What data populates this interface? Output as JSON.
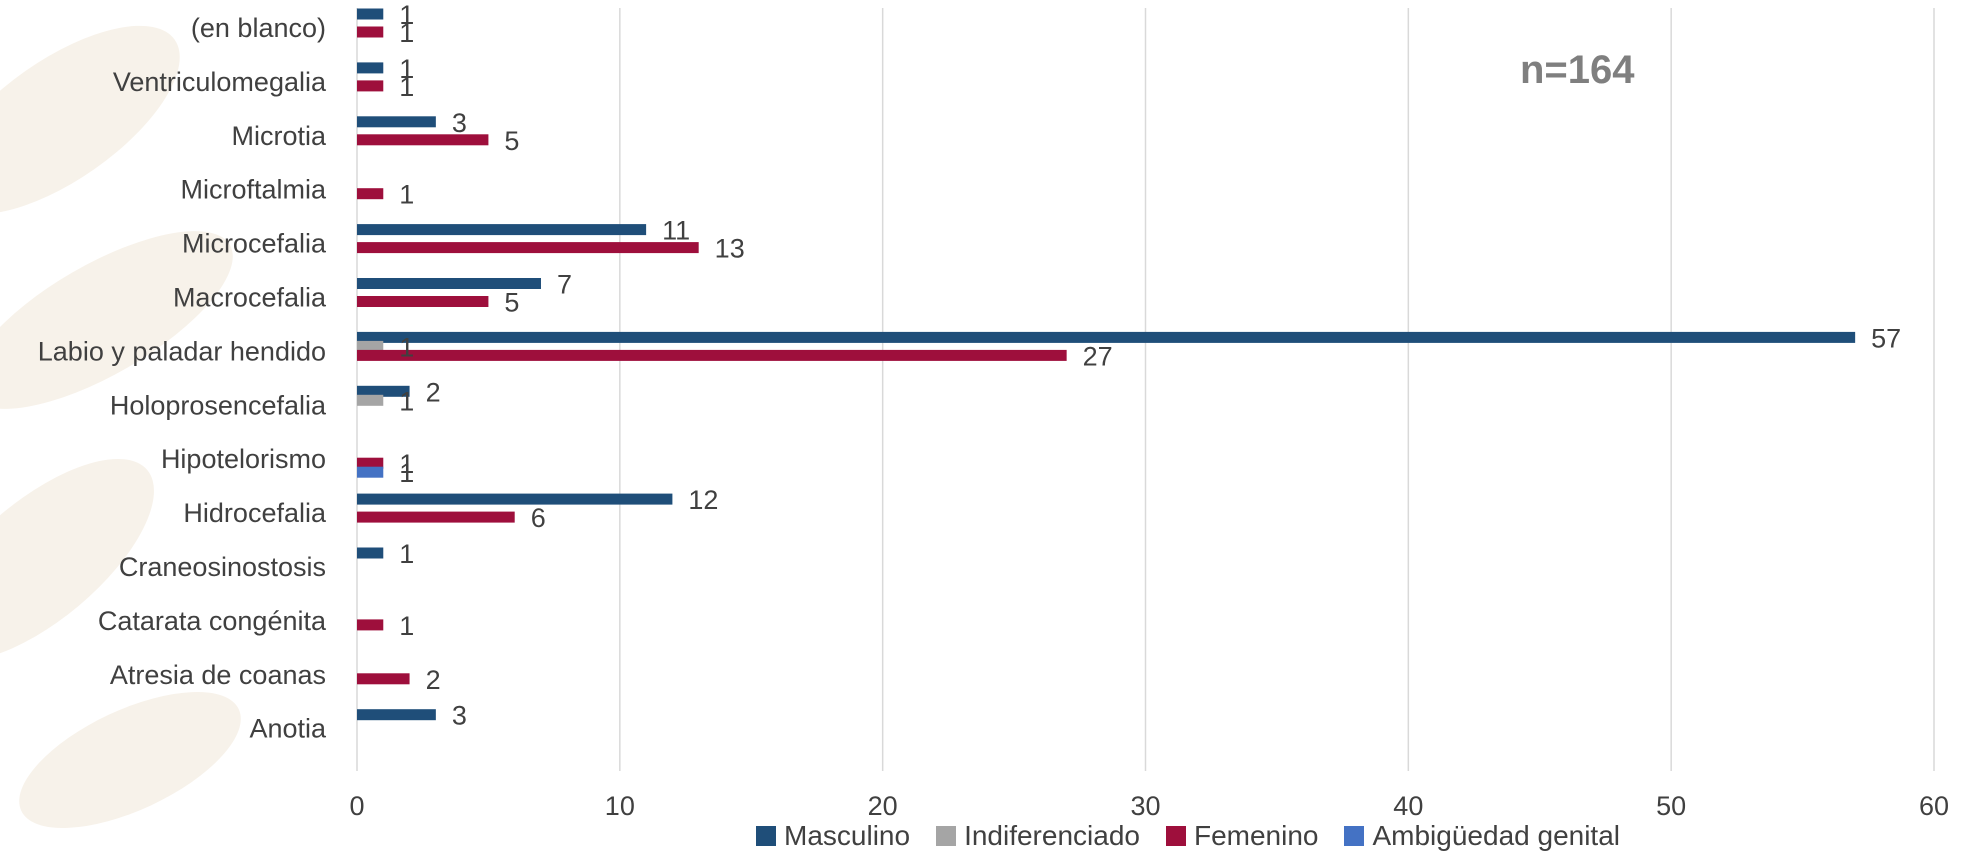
{
  "chart_data": {
    "type": "bar",
    "orientation": "horizontal",
    "annotation": "n=164",
    "categories": [
      "(en blanco)",
      "Ventriculomegalia",
      "Microtia",
      "Microftalmia",
      "Microcefalia",
      "Macrocefalia",
      "Labio y paladar hendido",
      "Holoprosencefalia",
      "Hipotelorismo",
      "Hidrocefalia",
      "Craneosinostosis",
      "Catarata congénita",
      "Atresia de coanas",
      "Anotia"
    ],
    "series": [
      {
        "name": "Masculino",
        "color": "#1f4e79",
        "values": [
          1,
          1,
          3,
          null,
          11,
          7,
          57,
          2,
          null,
          12,
          1,
          null,
          null,
          3
        ]
      },
      {
        "name": "Indiferenciado",
        "color": "#a5a5a5",
        "values": [
          null,
          null,
          null,
          null,
          null,
          null,
          1,
          1,
          null,
          null,
          null,
          null,
          null,
          null
        ]
      },
      {
        "name": "Femenino",
        "color": "#9e0f3c",
        "values": [
          1,
          1,
          5,
          1,
          13,
          5,
          27,
          null,
          1,
          6,
          null,
          1,
          2,
          null
        ]
      },
      {
        "name": "Ambigüedad genital",
        "color": "#4472c4",
        "values": [
          null,
          null,
          null,
          null,
          null,
          null,
          null,
          null,
          1,
          null,
          null,
          null,
          null,
          null
        ]
      }
    ],
    "xlim": [
      0,
      60
    ],
    "xticks": [
      0,
      10,
      20,
      30,
      40,
      50,
      60
    ],
    "grid": "vertical",
    "legend": "bottom",
    "title": "",
    "xlabel": "",
    "ylabel": ""
  },
  "legend_items": [
    {
      "label": "Masculino",
      "color": "#1f4e79"
    },
    {
      "label": "Indiferenciado",
      "color": "#a5a5a5"
    },
    {
      "label": "Femenino",
      "color": "#9e0f3c"
    },
    {
      "label": "Ambigüedad genital",
      "color": "#4472c4"
    }
  ]
}
